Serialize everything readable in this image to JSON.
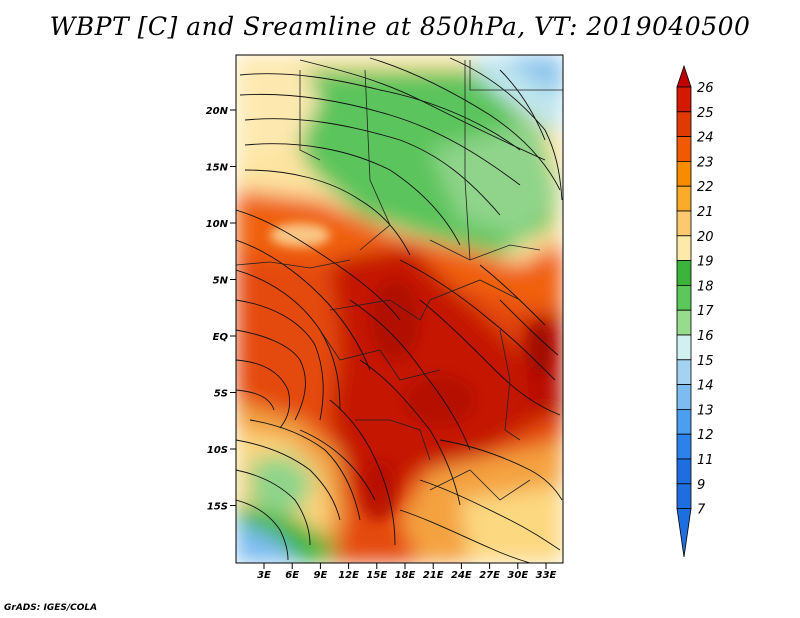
{
  "title": "WBPT [C] and Sreamline at 850hPa, VT: 2019040500",
  "credit": "GrADS: IGES/COLA",
  "map": {
    "lat_labels": [
      "20N",
      "15N",
      "10N",
      "5N",
      "EQ",
      "5S",
      "10S",
      "15S"
    ],
    "lon_labels": [
      "3E",
      "6E",
      "9E",
      "12E",
      "15E",
      "18E",
      "21E",
      "24E",
      "27E",
      "30E",
      "33E"
    ]
  },
  "colorbar": {
    "labels": [
      "26",
      "25",
      "24",
      "23",
      "22",
      "21",
      "20",
      "19",
      "18",
      "17",
      "16",
      "15",
      "14",
      "13",
      "12",
      "11",
      "9",
      "7"
    ],
    "colors": [
      "#c00000",
      "#d11a00",
      "#e03a00",
      "#f05a00",
      "#f88c00",
      "#fbaa2a",
      "#fcc870",
      "#fde9a8",
      "#3cb43c",
      "#5cc85c",
      "#96dc8c",
      "#d2f0f0",
      "#a4d2f0",
      "#7cbcf0",
      "#4c9ef0",
      "#2c82ea",
      "#1e6ee0"
    ]
  }
}
